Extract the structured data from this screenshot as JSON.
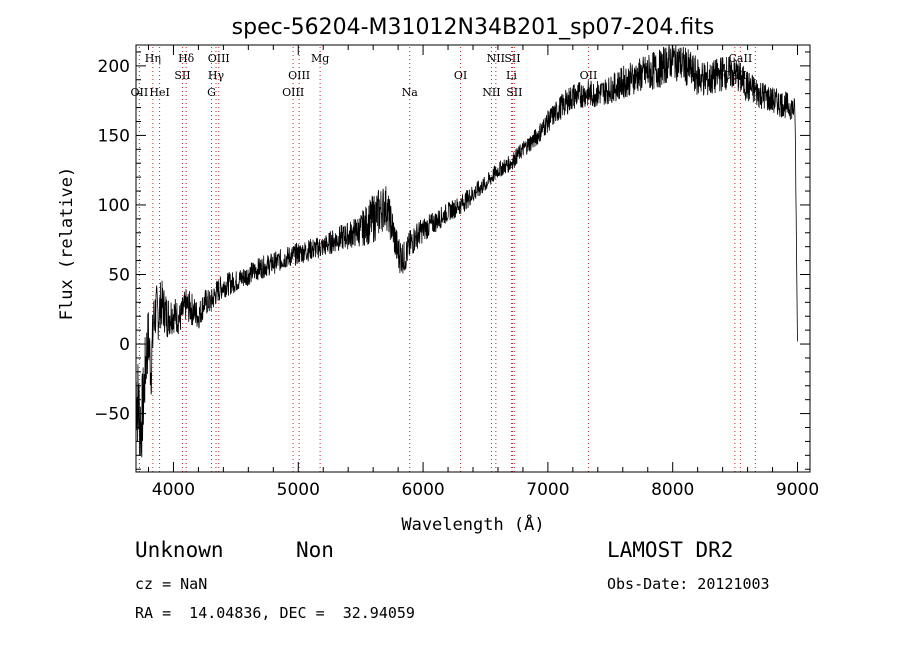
{
  "chart_data": {
    "type": "line",
    "title": "spec-56204-M31012N34B201_sp07-204.fits",
    "xlabel": "Wavelength (Å)",
    "ylabel": "Flux (relative)",
    "xlim": [
      3700,
      9100
    ],
    "ylim": [
      -92,
      215
    ],
    "x_ticks": [
      4000,
      5000,
      6000,
      7000,
      8000,
      9000
    ],
    "x_tick_labels": [
      "4000",
      "5000",
      "6000",
      "7000",
      "8000",
      "9000"
    ],
    "y_ticks": [
      -50,
      0,
      50,
      100,
      150,
      200
    ],
    "y_tick_labels": [
      "−50",
      "0",
      "50",
      "100",
      "150",
      "200"
    ],
    "grid": false,
    "legend": "none",
    "colors": {
      "spectrum": "#000000",
      "lines": "#cc2222",
      "axes": "#000000"
    },
    "series": [
      {
        "x": [
          3700,
          3740,
          3760,
          3780,
          3800,
          3820,
          3840,
          3860,
          3880,
          3900,
          3950,
          4000,
          4050,
          4100,
          4150,
          4200,
          4250,
          4300,
          4350,
          4400,
          4500,
          4600,
          4700,
          4800,
          4900,
          5000,
          5100,
          5200,
          5300,
          5400,
          5500,
          5600,
          5650,
          5700,
          5750,
          5800,
          5850,
          5900,
          5950,
          6000,
          6100,
          6200,
          6300,
          6400,
          6500,
          6600,
          6700,
          6800,
          6900,
          7000,
          7100,
          7200,
          7300,
          7400,
          7500,
          7600,
          7700,
          7800,
          7900,
          8000,
          8100,
          8200,
          8300,
          8400,
          8500,
          8600,
          8700,
          8800,
          8900,
          8950,
          8980,
          9000
        ],
        "y": [
          -30,
          -60,
          -40,
          -10,
          5,
          -20,
          15,
          25,
          20,
          30,
          20,
          22,
          18,
          28,
          25,
          20,
          30,
          30,
          38,
          42,
          45,
          50,
          55,
          58,
          62,
          65,
          68,
          70,
          75,
          78,
          82,
          90,
          95,
          100,
          85,
          65,
          62,
          72,
          78,
          82,
          88,
          95,
          100,
          108,
          115,
          125,
          130,
          140,
          148,
          160,
          170,
          178,
          180,
          180,
          183,
          188,
          192,
          195,
          198,
          205,
          200,
          192,
          190,
          195,
          195,
          185,
          180,
          175,
          172,
          170,
          168,
          0
        ],
        "noise": [
          38,
          32,
          28,
          26,
          24,
          22,
          22,
          20,
          18,
          18,
          16,
          14,
          12,
          12,
          12,
          10,
          10,
          9,
          9,
          9,
          8,
          8,
          8,
          8,
          8,
          8,
          8,
          8,
          9,
          10,
          12,
          18,
          18,
          16,
          14,
          14,
          12,
          11,
          10,
          9,
          8,
          7,
          7,
          7,
          6,
          6,
          6,
          6,
          7,
          8,
          9,
          10,
          10,
          10,
          10,
          12,
          12,
          14,
          14,
          14,
          14,
          14,
          13,
          13,
          12,
          12,
          11,
          10,
          10,
          9,
          9,
          2
        ]
      }
    ],
    "spectral_lines": [
      {
        "name": "Hη",
        "wavelength": 3835,
        "row": 0
      },
      {
        "name": "OII",
        "wavelength": 3727,
        "row": 2
      },
      {
        "name": "HeI",
        "wavelength": 3889,
        "row": 2
      },
      {
        "name": "Hδ",
        "wavelength": 4102,
        "row": 0
      },
      {
        "name": "SII",
        "wavelength": 4072,
        "row": 1
      },
      {
        "name": "OIII",
        "wavelength": 4363,
        "row": 0
      },
      {
        "name": "Hγ",
        "wavelength": 4341,
        "row": 1
      },
      {
        "name": "G",
        "wavelength": 4305,
        "row": 2
      },
      {
        "name": "Mg",
        "wavelength": 5175,
        "row": 0
      },
      {
        "name": "OIII",
        "wavelength": 5007,
        "row": 1
      },
      {
        "name": "OIII",
        "wavelength": 4959,
        "row": 2
      },
      {
        "name": "Na",
        "wavelength": 5893,
        "row": 2
      },
      {
        "name": "NII",
        "wavelength": 6583,
        "row": 0
      },
      {
        "name": "SII",
        "wavelength": 6716,
        "row": 0
      },
      {
        "name": "OI",
        "wavelength": 6300,
        "row": 1
      },
      {
        "name": "Li",
        "wavelength": 6708,
        "row": 1
      },
      {
        "name": "NII",
        "wavelength": 6548,
        "row": 2
      },
      {
        "name": "SII",
        "wavelength": 6731,
        "row": 2
      },
      {
        "name": "OII",
        "wavelength": 7325,
        "row": 1
      },
      {
        "name": "CaII",
        "wavelength": 8542,
        "row": 0
      },
      {
        "name": "CaII",
        "wavelength": 8498,
        "row": 1
      },
      {
        "name": "",
        "wavelength": 8662,
        "row": 1
      }
    ]
  },
  "info": {
    "class": "Unknown",
    "subclass": "Non",
    "survey": "LAMOST DR2",
    "cz": "cz = NaN",
    "obs_date": "Obs-Date: 20121003",
    "coords": "RA =  14.04836, DEC =  32.94059"
  }
}
